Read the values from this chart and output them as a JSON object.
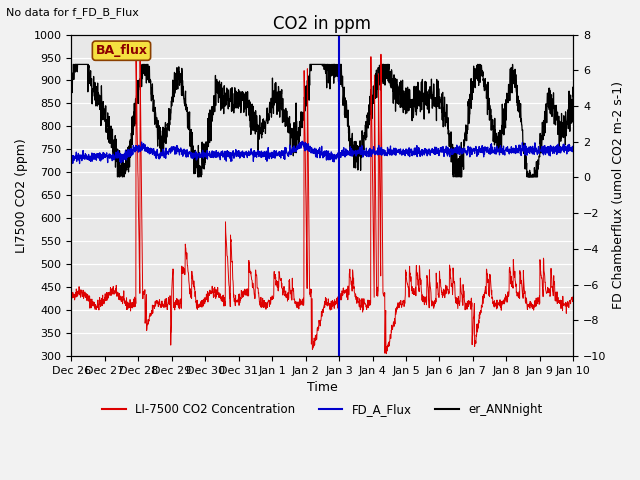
{
  "title": "CO2 in ppm",
  "top_left_text": "No data for f_FD_B_Flux",
  "legend_box_text": "BA_flux",
  "xlabel": "Time",
  "ylabel_left": "LI7500 CO2 (ppm)",
  "ylabel_right": "FD Chamberflux (umol CO2 m-2 s-1)",
  "ylim_left": [
    300,
    1000
  ],
  "ylim_right": [
    -10,
    8
  ],
  "xlim": [
    0,
    15.0
  ],
  "xtick_labels": [
    "Dec 26",
    "Dec 27",
    "Dec 28",
    "Dec 29",
    "Dec 30",
    "Dec 31",
    "Jan 1",
    "Jan 2",
    "Jan 3",
    "Jan 4",
    "Jan 5",
    "Jan 6",
    "Jan 7",
    "Jan 8",
    "Jan 9",
    "Jan 10"
  ],
  "xtick_positions": [
    0,
    1,
    2,
    3,
    4,
    5,
    6,
    7,
    8,
    9,
    10,
    11,
    12,
    13,
    14,
    15
  ],
  "blue_line_x": 8.0,
  "legend_labels": [
    "LI-7500 CO2 Concentration",
    "FD_A_Flux",
    "er_ANNnight"
  ],
  "legend_colors": [
    "#dd0000",
    "#0000dd",
    "#000000"
  ],
  "background_color": "#e8e8e8",
  "grid_color": "#ffffff",
  "title_fontsize": 12,
  "axis_label_fontsize": 9,
  "tick_fontsize": 8
}
